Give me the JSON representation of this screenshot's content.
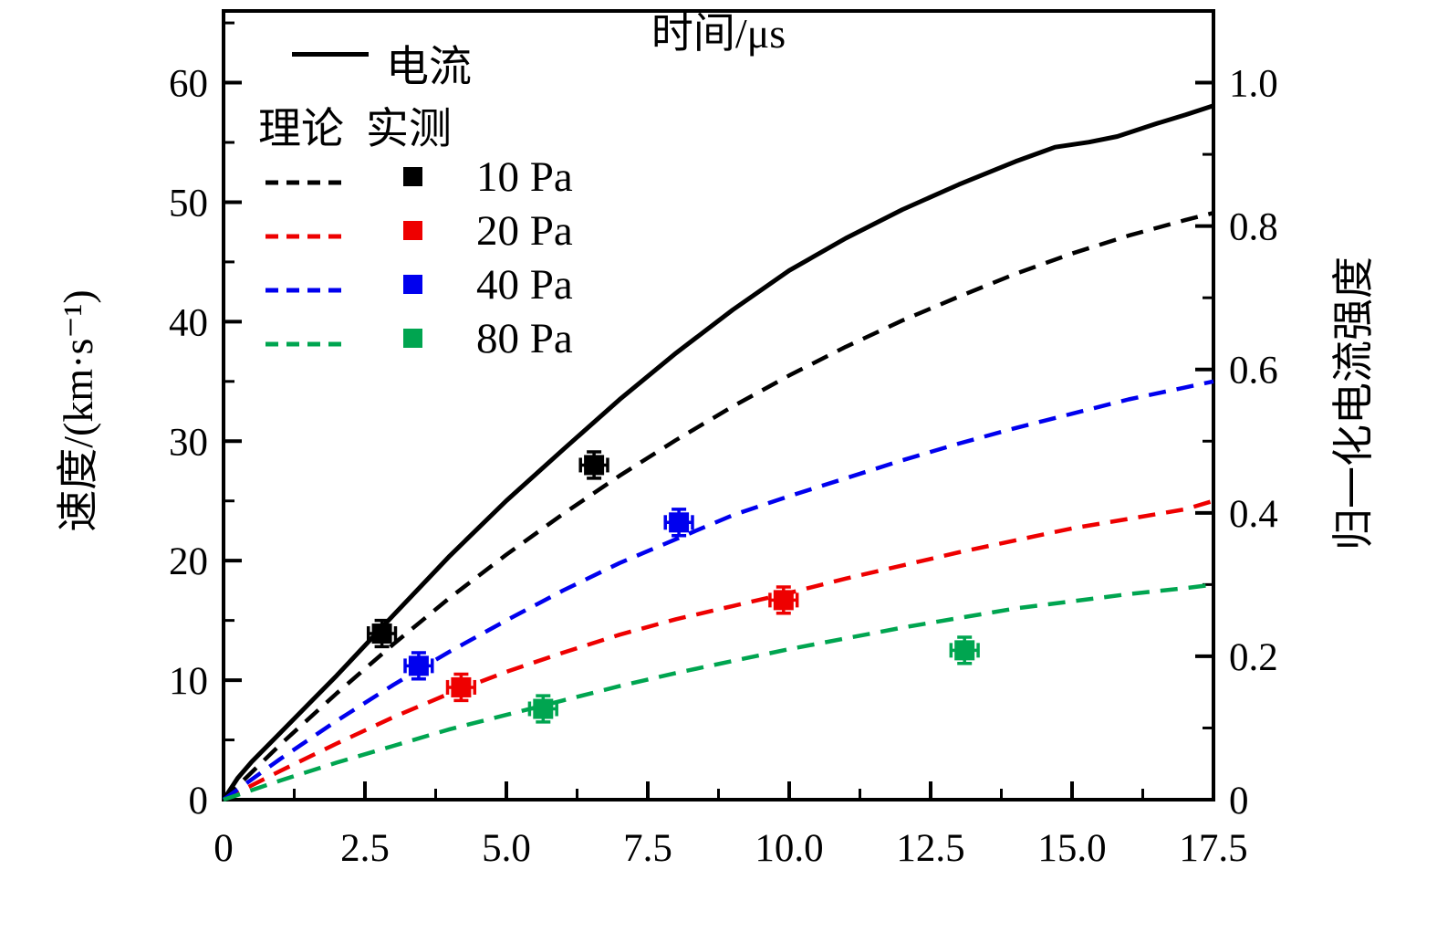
{
  "legend": {
    "current_label": "电流",
    "current_color": "#000000",
    "theory_header": "理论",
    "measured_header": "实测",
    "entries": [
      {
        "label": "10 Pa",
        "color": "#000000"
      },
      {
        "label": "20 Pa",
        "color": "#ee0000"
      },
      {
        "label": "40 Pa",
        "color": "#0000ee"
      },
      {
        "label": "80 Pa",
        "color": "#00a550"
      }
    ]
  },
  "chart_data": {
    "type": "line",
    "title": "",
    "x_axis": {
      "label": "时间/μs",
      "range": [
        0,
        17.5
      ],
      "major_ticks": [
        0,
        2.5,
        5,
        7.5,
        10,
        12.5,
        15,
        17.5
      ],
      "tick_labels": [
        "0",
        "2.5",
        "5.0",
        "7.5",
        "10.0",
        "12.5",
        "15.0",
        "17.5"
      ],
      "minor_ticks": [
        1.25,
        3.75,
        6.25,
        8.75,
        11.25,
        13.75,
        16.25
      ]
    },
    "y_left_axis": {
      "label": "速度/(km·s⁻¹)",
      "range": [
        0,
        66
      ],
      "major_ticks": [
        0,
        10,
        20,
        30,
        40,
        50,
        60
      ],
      "tick_labels": [
        "0",
        "10",
        "20",
        "30",
        "40",
        "50",
        "60"
      ],
      "minor_ticks": [
        5,
        15,
        25,
        35,
        45,
        55,
        65
      ]
    },
    "y_right_axis": {
      "label": "归一化电流强度",
      "range": [
        0,
        1.1
      ],
      "major_ticks": [
        0,
        0.2,
        0.4,
        0.6,
        0.8,
        1.0
      ],
      "tick_labels": [
        "0",
        "0.2",
        "0.4",
        "0.6",
        "0.8",
        "1.0"
      ],
      "minor_ticks": [
        0.1,
        0.3,
        0.5,
        0.7,
        0.9
      ]
    },
    "grid": false,
    "legend_position": "upper-left",
    "curves": [
      {
        "name": "电流",
        "role": "normalized-current",
        "style": "solid",
        "color": "#000000",
        "axis": "right",
        "x": [
          0,
          0.25,
          0.5,
          1,
          1.5,
          2,
          3,
          4,
          5,
          6,
          7,
          8,
          9,
          10,
          11,
          12,
          13,
          14,
          14.7,
          15.3,
          15.8,
          16.5,
          17,
          17.5
        ],
        "y": [
          0,
          0.03,
          0.053,
          0.093,
          0.133,
          0.173,
          0.257,
          0.34,
          0.417,
          0.488,
          0.558,
          0.623,
          0.683,
          0.738,
          0.783,
          0.823,
          0.858,
          0.89,
          0.91,
          0.917,
          0.925,
          0.943,
          0.955,
          0.968
        ]
      },
      {
        "name": "10 Pa 理论",
        "role": "theory",
        "style": "dashed",
        "color": "#000000",
        "axis": "left",
        "x": [
          0,
          1,
          2,
          3,
          4,
          5,
          6,
          7,
          8,
          9,
          10,
          11,
          12,
          13,
          14,
          15,
          16,
          17,
          17.5
        ],
        "y": [
          0,
          4.6,
          8.9,
          13,
          16.9,
          20.5,
          23.9,
          27.1,
          30.1,
          32.9,
          35.5,
          37.9,
          40.1,
          42.1,
          44,
          45.7,
          47.2,
          48.5,
          49.1
        ]
      },
      {
        "name": "20 Pa 理论",
        "role": "theory",
        "style": "dashed",
        "color": "#ee0000",
        "axis": "left",
        "x": [
          0,
          1,
          2,
          3,
          4,
          5,
          6,
          7,
          8,
          9,
          10,
          11,
          12,
          13,
          14,
          15,
          16,
          17,
          17.5
        ],
        "y": [
          0,
          2.4,
          4.7,
          6.9,
          8.9,
          10.7,
          12.3,
          13.8,
          15.1,
          16.2,
          17.3,
          18.5,
          19.6,
          20.7,
          21.7,
          22.7,
          23.5,
          24.3,
          25
        ]
      },
      {
        "name": "40 Pa 理论",
        "role": "theory",
        "style": "dashed",
        "color": "#0000ee",
        "axis": "left",
        "x": [
          0,
          1,
          2,
          3,
          4,
          5,
          6,
          7,
          8,
          9,
          10,
          11,
          12,
          13,
          14,
          15,
          16,
          17,
          17.5
        ],
        "y": [
          0,
          3.4,
          6.6,
          9.6,
          12.4,
          15,
          17.5,
          19.8,
          21.8,
          23.8,
          25.4,
          26.9,
          28.4,
          29.8,
          31.1,
          32.3,
          33.5,
          34.5,
          35
        ]
      },
      {
        "name": "80 Pa 理论",
        "role": "theory",
        "style": "dashed",
        "color": "#00a550",
        "axis": "left",
        "x": [
          0,
          1,
          2,
          3,
          4,
          5,
          6,
          7,
          8,
          9,
          10,
          11,
          12,
          13,
          14,
          15,
          16,
          17,
          17.5
        ],
        "y": [
          0,
          1.6,
          3.1,
          4.5,
          5.9,
          7.1,
          8.3,
          9.5,
          10.6,
          11.6,
          12.6,
          13.5,
          14.4,
          15.2,
          16,
          16.6,
          17.2,
          17.7,
          18
        ]
      }
    ],
    "measured": [
      {
        "name": "10 Pa 实测",
        "color": "#000000",
        "marker": "square",
        "points": [
          {
            "x": 2.8,
            "y": 13.9
          },
          {
            "x": 6.55,
            "y": 28.0
          }
        ],
        "xerr": 0.24,
        "yerr": 1.1
      },
      {
        "name": "20 Pa 实测",
        "color": "#ee0000",
        "marker": "square",
        "points": [
          {
            "x": 4.2,
            "y": 9.4
          },
          {
            "x": 9.9,
            "y": 16.7
          }
        ],
        "xerr": 0.24,
        "yerr": 1.1
      },
      {
        "name": "40 Pa 实测",
        "color": "#0000ee",
        "marker": "square",
        "points": [
          {
            "x": 3.45,
            "y": 11.2
          },
          {
            "x": 8.05,
            "y": 23.2
          }
        ],
        "xerr": 0.24,
        "yerr": 1.1
      },
      {
        "name": "80 Pa 实测",
        "color": "#00a550",
        "marker": "square",
        "points": [
          {
            "x": 5.65,
            "y": 7.6
          },
          {
            "x": 13.1,
            "y": 12.5
          }
        ],
        "xerr": 0.24,
        "yerr": 1.1
      }
    ]
  }
}
